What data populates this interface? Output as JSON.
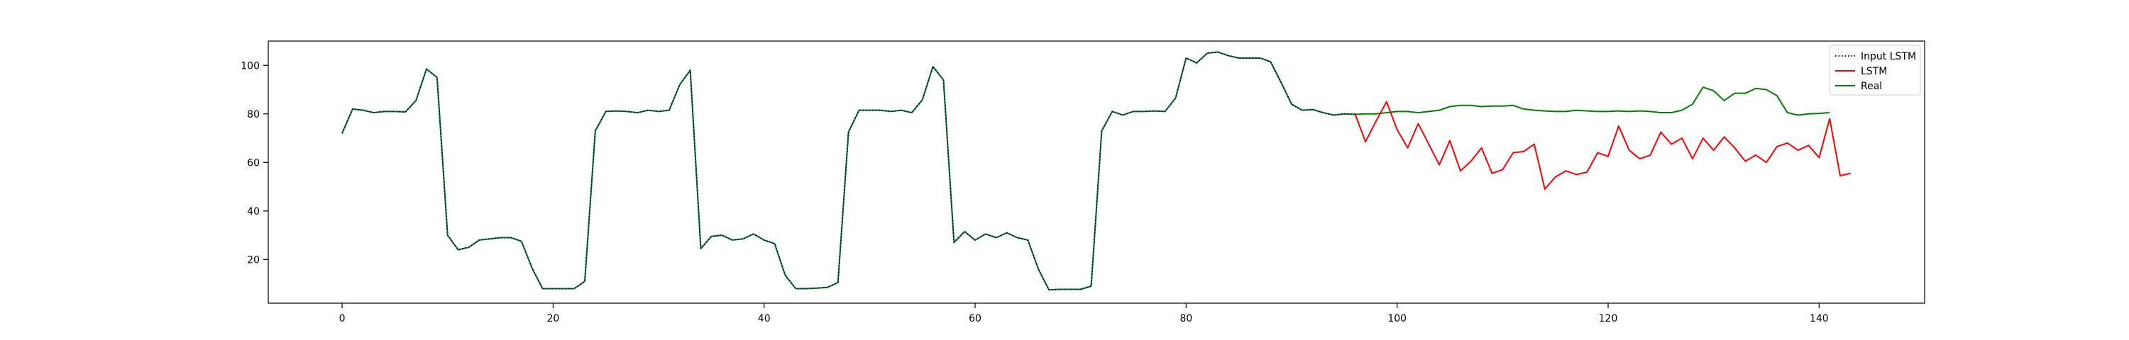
{
  "chart_data": {
    "type": "line",
    "title": "",
    "xlabel": "",
    "ylabel": "",
    "xlim": [
      -7,
      150
    ],
    "ylim": [
      2,
      110
    ],
    "xticks": [
      0,
      20,
      40,
      60,
      80,
      100,
      120,
      140
    ],
    "yticks": [
      20,
      40,
      60,
      80,
      100
    ],
    "legend_position": "top-right",
    "series": [
      {
        "name": "Input LSTM",
        "color": "#000080",
        "style": "dotted",
        "x_start": 0,
        "values": [
          72,
          82,
          81.5,
          80.5,
          81,
          81,
          80.8,
          85.5,
          98.5,
          95,
          30,
          24,
          25,
          28,
          28.5,
          29,
          29,
          27.5,
          16.5,
          8,
          8,
          8,
          8,
          11,
          73,
          81,
          81.2,
          81,
          80.5,
          81.5,
          81,
          81.5,
          92,
          98,
          24.5,
          29.5,
          30,
          28,
          28.5,
          30.5,
          28,
          26.5,
          13.5,
          8,
          8,
          8.2,
          8.5,
          10.5,
          72.5,
          81.5,
          81.5,
          81.5,
          81,
          81.5,
          80.5,
          85.8,
          99.5,
          94,
          27,
          31.5,
          28,
          30.5,
          29,
          31,
          29,
          28,
          16,
          7.5,
          7.7,
          7.7,
          7.7,
          9,
          73,
          81,
          79.5,
          81,
          81,
          81.2,
          81,
          86.5,
          103,
          101,
          105,
          105.5,
          104,
          103,
          103,
          103,
          101.5,
          93,
          84,
          81.5,
          81.8,
          80.5,
          79.5,
          80,
          79.8
        ]
      },
      {
        "name": "LSTM",
        "color": "#ff0000",
        "style": "solid",
        "x_start": 96,
        "values": [
          80.2,
          68.5,
          77,
          85,
          73.5,
          66,
          76,
          67.5,
          59,
          69,
          56.5,
          60.5,
          66,
          55.5,
          57,
          64,
          64.5,
          67.5,
          49,
          54,
          56.5,
          55,
          56,
          64,
          62.5,
          75,
          65,
          61.5,
          63,
          72.5,
          67.5,
          70,
          61.5,
          70,
          65,
          70.5,
          66,
          60.5,
          63,
          60,
          66.5,
          68,
          65,
          67,
          62,
          78,
          54.5,
          55.5
        ]
      },
      {
        "name": "Real",
        "color": "#008000",
        "style": "solid",
        "x_start": 0,
        "values": [
          72,
          82,
          81.5,
          80.5,
          81,
          81,
          80.8,
          85.5,
          98.5,
          95,
          30,
          24,
          25,
          28,
          28.5,
          29,
          29,
          27.5,
          16.5,
          8,
          8,
          8,
          8,
          11,
          73,
          81,
          81.2,
          81,
          80.5,
          81.5,
          81,
          81.5,
          92,
          98,
          24.5,
          29.5,
          30,
          28,
          28.5,
          30.5,
          28,
          26.5,
          13.5,
          8,
          8,
          8.2,
          8.5,
          10.5,
          72.5,
          81.5,
          81.5,
          81.5,
          81,
          81.5,
          80.5,
          85.8,
          99.5,
          94,
          27,
          31.5,
          28,
          30.5,
          29,
          31,
          29,
          28,
          16,
          7.5,
          7.7,
          7.7,
          7.7,
          9,
          73,
          81,
          79.5,
          81,
          81,
          81.2,
          81,
          86.5,
          103,
          101,
          105,
          105.5,
          104,
          103,
          103,
          103,
          101.5,
          93,
          84,
          81.5,
          81.8,
          80.5,
          79.5,
          80,
          79.8,
          80,
          80,
          80.5,
          81,
          81,
          80.5,
          81,
          81.5,
          83,
          83.5,
          83.5,
          83,
          83.2,
          83.2,
          83.5,
          82,
          81.5,
          81.2,
          81,
          81,
          81.5,
          81.2,
          81,
          81,
          81.2,
          81,
          81.2,
          81,
          80.5,
          80.5,
          81.5,
          84,
          91,
          89.5,
          85.5,
          88.5,
          88.5,
          90.5,
          90,
          87.5,
          80.5,
          79.5,
          80,
          80.2,
          80.5
        ]
      }
    ]
  }
}
